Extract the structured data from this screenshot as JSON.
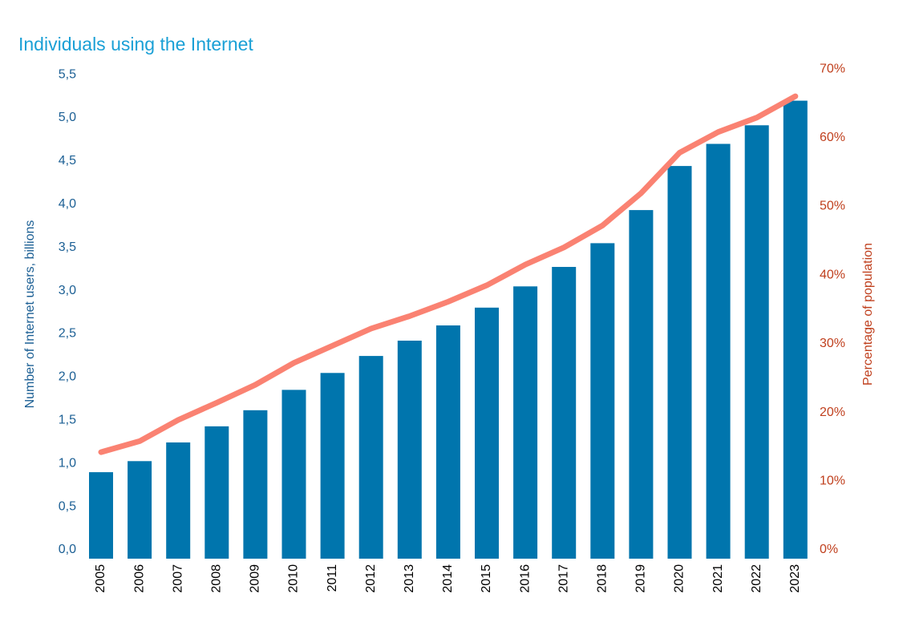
{
  "chart_data": {
    "type": "bar",
    "title": "Individuals using the Internet",
    "categories": [
      "2005",
      "2006",
      "2007",
      "2008",
      "2009",
      "2010",
      "2011",
      "2012",
      "2013",
      "2014",
      "2015",
      "2016",
      "2017",
      "2018",
      "2019",
      "2020",
      "2021",
      "2022",
      "2023"
    ],
    "series": [
      {
        "type": "bar",
        "axis": "left",
        "color": "#0075ad",
        "values": [
          1.02,
          1.15,
          1.37,
          1.56,
          1.75,
          1.99,
          2.19,
          2.39,
          2.57,
          2.75,
          2.96,
          3.21,
          3.44,
          3.72,
          4.11,
          4.63,
          4.89,
          5.11,
          5.4
        ]
      },
      {
        "type": "line",
        "axis": "right",
        "color": "#fa8272",
        "values": [
          15.5,
          17.1,
          20.2,
          22.7,
          25.3,
          28.5,
          31.0,
          33.5,
          35.3,
          37.4,
          39.8,
          42.8,
          45.3,
          48.5,
          53.2,
          59.1,
          62.1,
          64.2,
          67.3
        ]
      }
    ],
    "y_left": {
      "label": "Number of Internet users, billions",
      "min": 0,
      "max": 5.5,
      "ticks": [
        "0,0",
        "0,5",
        "1,0",
        "1,5",
        "2,0",
        "2,5",
        "3,0",
        "3,5",
        "4,0",
        "4,5",
        "5,0",
        "5,5"
      ],
      "tick_values": [
        0,
        0.5,
        1,
        1.5,
        2,
        2.5,
        3,
        3.5,
        4,
        4.5,
        5,
        5.5
      ],
      "color": "#1b5f94"
    },
    "y_right": {
      "label": "Percentage of population",
      "min": 0,
      "max": 70,
      "ticks": [
        "0%",
        "10%",
        "20%",
        "30%",
        "40%",
        "50%",
        "60%",
        "70%"
      ],
      "tick_values": [
        0,
        10,
        20,
        30,
        40,
        50,
        60,
        70
      ],
      "color": "#c0401e"
    },
    "grid": false,
    "legend": "none",
    "title_color": "#1aa0d6"
  }
}
